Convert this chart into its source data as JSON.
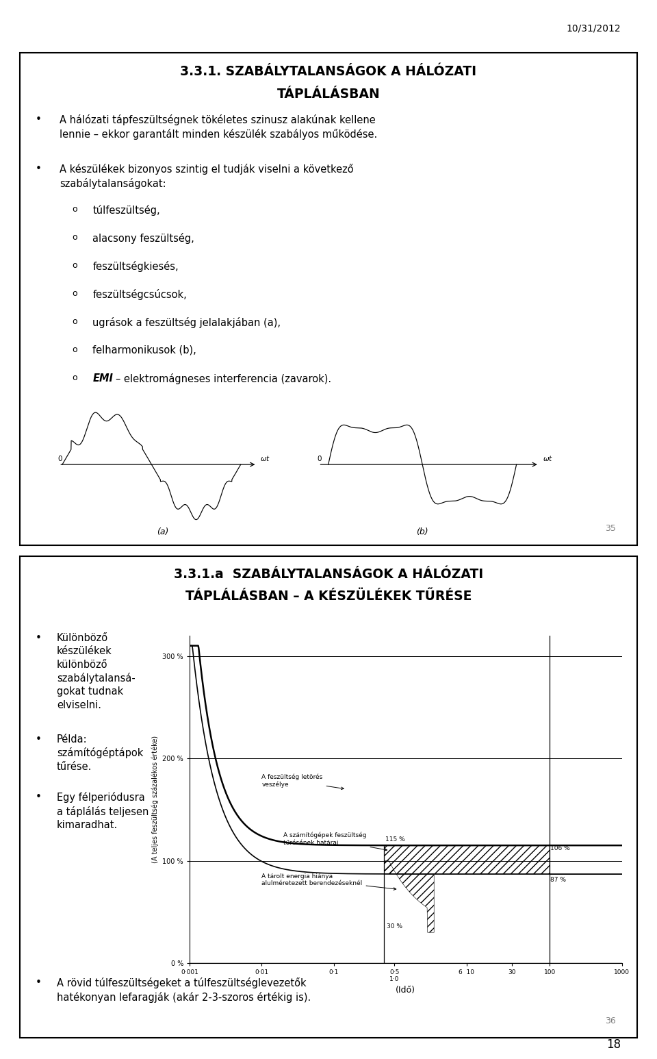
{
  "date_text": "10/31/2012",
  "page_number": "18",
  "slide1": {
    "title_line1": "3.3.1. SZABÁLYTALANSÁGOK A HÁLÓZATI",
    "title_line2": "TÁPLÁLÁSBAN",
    "bullet1": "A hálózati tápfeszültségnek tökéletes szinusz alakúnak kellene\nlennie – ekkor garantált minden készülék szabályos működése.",
    "bullet2_intro": "A készülékek bizonyos szintig el tudják viselni a következő\nszabálytalanságokat:",
    "sub_items": [
      "túlfeszültség,",
      "alacsony feszültség,",
      "feszültségkiesés,",
      "feszültségcsúcsok,",
      "ugrások a feszültség jelalakjában (a),",
      "felharmonikusok (b),",
      "EMI – elektromágneses interferencia (zavarok)."
    ],
    "page_num": "35"
  },
  "slide2": {
    "title_line1": "3.3.1.a  SZABÁLYTALANSÁGOK A HÁLÓZATI",
    "title_line2": "TÁPLÁLÁSBAN – A KÉSZÜLÉKEK TŰRÉSE",
    "bullet1": "Különböző\nkészülékek\nkülönböző\nszabálytalansá-\ngokat tudnak\nelviselni.",
    "bullet2": "Példa:\nszámítógéptápok\ntűrése.",
    "bullet3": "Egy félperiódusra\na táplálás teljesen\nkimaradhat.",
    "bottom_bullet": "A rövid túlfeszültségeket a túlfeszültséglevezetők\nhatékonyan lefaragják (akár 2-3-szoros értékig is).",
    "page_num": "36",
    "chart_ylabel": "(A teljes feszültség százalékos értéke)",
    "chart_xlabel": "(Idő)",
    "ann1_text": "A feszültség letörés\nveszélye",
    "ann2_text": "A számítógépek feszültség\ntűrésének határai",
    "ann3_text": "A tárolt energia hiánya\nalulméretezett berendezéseknél"
  },
  "bg_color": "#ffffff",
  "text_color": "#000000"
}
